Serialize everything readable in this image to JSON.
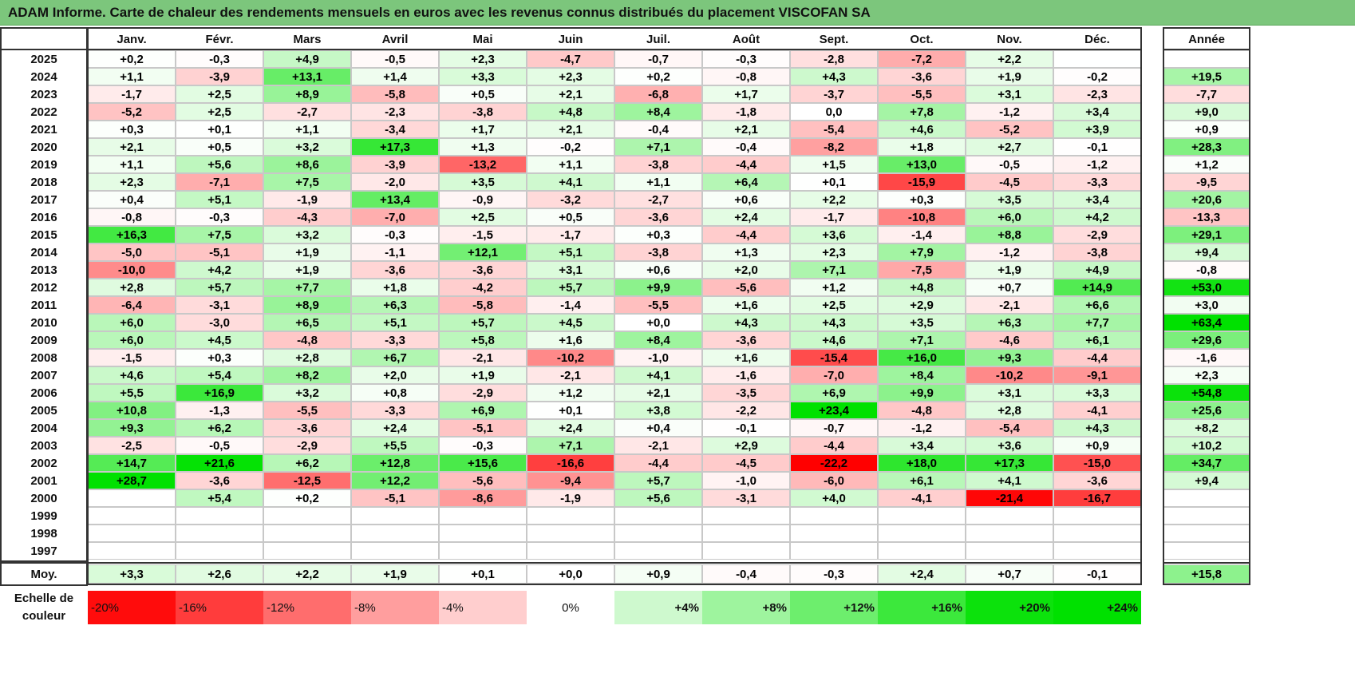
{
  "title": "ADAM Informe. Carte de chaleur des rendements mensuels en euros avec les revenus connus distribués du placement VISCOFAN SA",
  "chart_data": {
    "type": "heatmap",
    "title": "ADAM Informe. Carte de chaleur des rendements mensuels en euros avec les revenus connus distribués du placement VISCOFAN SA",
    "columns": [
      "Janv.",
      "Févr.",
      "Mars",
      "Avril",
      "Mai",
      "Juin",
      "Juil.",
      "Août",
      "Sept.",
      "Oct.",
      "Nov.",
      "Déc."
    ],
    "year_header": "Année",
    "rows": [
      {
        "year": "2025",
        "values": [
          "+0,2",
          "-0,3",
          "+4,9",
          "-0,5",
          "+2,3",
          "-4,7",
          "-0,7",
          "-0,3",
          "-2,8",
          "-7,2",
          "+2,2",
          ""
        ],
        "annual": ""
      },
      {
        "year": "2024",
        "values": [
          "+1,1",
          "-3,9",
          "+13,1",
          "+1,4",
          "+3,3",
          "+2,3",
          "+0,2",
          "-0,8",
          "+4,3",
          "-3,6",
          "+1,9",
          "-0,2"
        ],
        "annual": "+19,5"
      },
      {
        "year": "2023",
        "values": [
          "-1,7",
          "+2,5",
          "+8,9",
          "-5,8",
          "+0,5",
          "+2,1",
          "-6,8",
          "+1,7",
          "-3,7",
          "-5,5",
          "+3,1",
          "-2,3"
        ],
        "annual": "-7,7"
      },
      {
        "year": "2022",
        "values": [
          "-5,2",
          "+2,5",
          "-2,7",
          "-2,3",
          "-3,8",
          "+4,8",
          "+8,4",
          "-1,8",
          "0,0",
          "+7,8",
          "-1,2",
          "+3,4"
        ],
        "annual": "+9,0"
      },
      {
        "year": "2021",
        "values": [
          "+0,3",
          "+0,1",
          "+1,1",
          "-3,4",
          "+1,7",
          "+2,1",
          "-0,4",
          "+2,1",
          "-5,4",
          "+4,6",
          "-5,2",
          "+3,9"
        ],
        "annual": "+0,9"
      },
      {
        "year": "2020",
        "values": [
          "+2,1",
          "+0,5",
          "+3,2",
          "+17,3",
          "+1,3",
          "-0,2",
          "+7,1",
          "-0,4",
          "-8,2",
          "+1,8",
          "+2,7",
          "-0,1"
        ],
        "annual": "+28,3"
      },
      {
        "year": "2019",
        "values": [
          "+1,1",
          "+5,6",
          "+8,6",
          "-3,9",
          "-13,2",
          "+1,1",
          "-3,8",
          "-4,4",
          "+1,5",
          "+13,0",
          "-0,5",
          "-1,2"
        ],
        "annual": "+1,2"
      },
      {
        "year": "2018",
        "values": [
          "+2,3",
          "-7,1",
          "+7,5",
          "-2,0",
          "+3,5",
          "+4,1",
          "+1,1",
          "+6,4",
          "+0,1",
          "-15,9",
          "-4,5",
          "-3,3"
        ],
        "annual": "-9,5"
      },
      {
        "year": "2017",
        "values": [
          "+0,4",
          "+5,1",
          "-1,9",
          "+13,4",
          "-0,9",
          "-3,2",
          "-2,7",
          "+0,6",
          "+2,2",
          "+0,3",
          "+3,5",
          "+3,4"
        ],
        "annual": "+20,6"
      },
      {
        "year": "2016",
        "values": [
          "-0,8",
          "-0,3",
          "-4,3",
          "-7,0",
          "+2,5",
          "+0,5",
          "-3,6",
          "+2,4",
          "-1,7",
          "-10,8",
          "+6,0",
          "+4,2"
        ],
        "annual": "-13,3"
      },
      {
        "year": "2015",
        "values": [
          "+16,3",
          "+7,5",
          "+3,2",
          "-0,3",
          "-1,5",
          "-1,7",
          "+0,3",
          "-4,4",
          "+3,6",
          "-1,4",
          "+8,8",
          "-2,9"
        ],
        "annual": "+29,1"
      },
      {
        "year": "2014",
        "values": [
          "-5,0",
          "-5,1",
          "+1,9",
          "-1,1",
          "+12,1",
          "+5,1",
          "-3,8",
          "+1,3",
          "+2,3",
          "+7,9",
          "-1,2",
          "-3,8"
        ],
        "annual": "+9,4"
      },
      {
        "year": "2013",
        "values": [
          "-10,0",
          "+4,2",
          "+1,9",
          "-3,6",
          "-3,6",
          "+3,1",
          "+0,6",
          "+2,0",
          "+7,1",
          "-7,5",
          "+1,9",
          "+4,9"
        ],
        "annual": "-0,8"
      },
      {
        "year": "2012",
        "values": [
          "+2,8",
          "+5,7",
          "+7,7",
          "+1,8",
          "-4,2",
          "+5,7",
          "+9,9",
          "-5,6",
          "+1,2",
          "+4,8",
          "+0,7",
          "+14,9"
        ],
        "annual": "+53,0"
      },
      {
        "year": "2011",
        "values": [
          "-6,4",
          "-3,1",
          "+8,9",
          "+6,3",
          "-5,8",
          "-1,4",
          "-5,5",
          "+1,6",
          "+2,5",
          "+2,9",
          "-2,1",
          "+6,6"
        ],
        "annual": "+3,0"
      },
      {
        "year": "2010",
        "values": [
          "+6,0",
          "-3,0",
          "+6,5",
          "+5,1",
          "+5,7",
          "+4,5",
          "+0,0",
          "+4,3",
          "+4,3",
          "+3,5",
          "+6,3",
          "+7,7"
        ],
        "annual": "+63,4"
      },
      {
        "year": "2009",
        "values": [
          "+6,0",
          "+4,5",
          "-4,8",
          "-3,3",
          "+5,8",
          "+1,6",
          "+8,4",
          "-3,6",
          "+4,6",
          "+7,1",
          "-4,6",
          "+6,1"
        ],
        "annual": "+29,6"
      },
      {
        "year": "2008",
        "values": [
          "-1,5",
          "+0,3",
          "+2,8",
          "+6,7",
          "-2,1",
          "-10,2",
          "-1,0",
          "+1,6",
          "-15,4",
          "+16,0",
          "+9,3",
          "-4,4"
        ],
        "annual": "-1,6"
      },
      {
        "year": "2007",
        "values": [
          "+4,6",
          "+5,4",
          "+8,2",
          "+2,0",
          "+1,9",
          "-2,1",
          "+4,1",
          "-1,6",
          "-7,0",
          "+8,4",
          "-10,2",
          "-9,1"
        ],
        "annual": "+2,3"
      },
      {
        "year": "2006",
        "values": [
          "+5,5",
          "+16,9",
          "+3,2",
          "+0,8",
          "-2,9",
          "+1,2",
          "+2,1",
          "-3,5",
          "+6,9",
          "+9,9",
          "+3,1",
          "+3,3"
        ],
        "annual": "+54,8"
      },
      {
        "year": "2005",
        "values": [
          "+10,8",
          "-1,3",
          "-5,5",
          "-3,3",
          "+6,9",
          "+0,1",
          "+3,8",
          "-2,2",
          "+23,4",
          "-4,8",
          "+2,8",
          "-4,1"
        ],
        "annual": "+25,6"
      },
      {
        "year": "2004",
        "values": [
          "+9,3",
          "+6,2",
          "-3,6",
          "+2,4",
          "-5,1",
          "+2,4",
          "+0,4",
          "-0,1",
          "-0,7",
          "-1,2",
          "-5,4",
          "+4,3"
        ],
        "annual": "+8,2"
      },
      {
        "year": "2003",
        "values": [
          "-2,5",
          "-0,5",
          "-2,9",
          "+5,5",
          "-0,3",
          "+7,1",
          "-2,1",
          "+2,9",
          "-4,4",
          "+3,4",
          "+3,6",
          "+0,9"
        ],
        "annual": "+10,2"
      },
      {
        "year": "2002",
        "values": [
          "+14,7",
          "+21,6",
          "+6,2",
          "+12,8",
          "+15,6",
          "-16,6",
          "-4,4",
          "-4,5",
          "-22,2",
          "+18,0",
          "+17,3",
          "-15,0"
        ],
        "annual": "+34,7"
      },
      {
        "year": "2001",
        "values": [
          "+28,7",
          "-3,6",
          "-12,5",
          "+12,2",
          "-5,6",
          "-9,4",
          "+5,7",
          "-1,0",
          "-6,0",
          "+6,1",
          "+4,1",
          "-3,6"
        ],
        "annual": "+9,4"
      },
      {
        "year": "2000",
        "values": [
          "",
          "+5,4",
          "+0,2",
          "-5,1",
          "-8,6",
          "-1,9",
          "+5,6",
          "-3,1",
          "+4,0",
          "-4,1",
          "-21,4",
          "-16,7"
        ],
        "annual": ""
      },
      {
        "year": "1999",
        "values": [
          "",
          "",
          "",
          "",
          "",
          "",
          "",
          "",
          "",
          "",
          "",
          ""
        ],
        "annual": ""
      },
      {
        "year": "1998",
        "values": [
          "",
          "",
          "",
          "",
          "",
          "",
          "",
          "",
          "",
          "",
          "",
          ""
        ],
        "annual": ""
      },
      {
        "year": "1997",
        "values": [
          "",
          "",
          "",
          "",
          "",
          "",
          "",
          "",
          "",
          "",
          "",
          ""
        ],
        "annual": ""
      }
    ],
    "average": {
      "label": "Moy.",
      "values": [
        "+3,3",
        "+2,6",
        "+2,2",
        "+1,9",
        "+0,1",
        "+0,0",
        "+0,9",
        "-0,4",
        "-0,3",
        "+2,4",
        "+0,7",
        "-0,1"
      ],
      "annual": "+15,8"
    },
    "color_scale": {
      "label_line1": "Echelle de",
      "label_line2": "couleur",
      "steps": [
        "-20%",
        "-16%",
        "-12%",
        "-8%",
        "-4%",
        "0%",
        "+4%",
        "+8%",
        "+12%",
        "+16%",
        "+20%",
        "+24%"
      ],
      "step_values": [
        -20,
        -16,
        -12,
        -8,
        -4,
        0,
        4,
        8,
        12,
        16,
        20,
        24
      ],
      "negative_color": "#ff0000",
      "positive_color": "#00e000",
      "neutral_color": "#ffffff"
    }
  }
}
